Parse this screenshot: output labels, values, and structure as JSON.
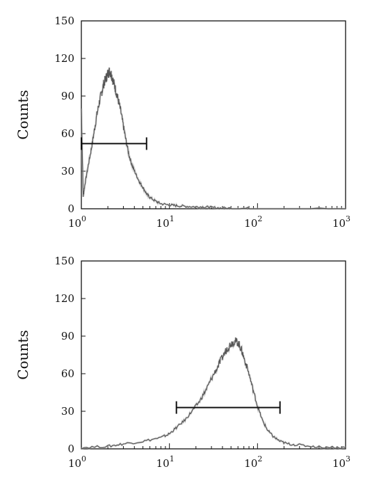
{
  "chart_data": [
    {
      "type": "area",
      "ylabel": "Counts",
      "xscale": "log",
      "xlim": [
        1,
        1000
      ],
      "ylim": [
        0,
        150
      ],
      "y_ticks": [
        "150",
        "120",
        "90",
        "60",
        "30",
        "0"
      ],
      "x_ticks": [
        {
          "base": "10",
          "exp": "0"
        },
        {
          "base": "10",
          "exp": "1"
        },
        {
          "base": "10",
          "exp": "2"
        },
        {
          "base": "10",
          "exp": "3"
        }
      ],
      "histogram": {
        "x": [
          1.0,
          1.05,
          1.1,
          1.2,
          1.3,
          1.4,
          1.5,
          1.6,
          1.7,
          1.8,
          1.9,
          2.0,
          2.1,
          2.2,
          2.3,
          2.45,
          2.6,
          2.8,
          3.0,
          3.2,
          3.5,
          3.8,
          4.2,
          4.6,
          5.0,
          5.5,
          6.0,
          7.0,
          8.0,
          10,
          12,
          15,
          20,
          25,
          30,
          40,
          60,
          100,
          1000
        ],
        "y": [
          80,
          10,
          20,
          35,
          48,
          62,
          75,
          85,
          93,
          100,
          104,
          108,
          110,
          107,
          102,
          95,
          88,
          78,
          66,
          55,
          42,
          34,
          27,
          21,
          17,
          12,
          9,
          6,
          4,
          3,
          2.5,
          2,
          1.5,
          1.5,
          1,
          0.5,
          0.3,
          0.2,
          0
        ]
      },
      "gate": {
        "x_start": 1.0,
        "x_end": 5.5,
        "y": 52
      }
    },
    {
      "type": "area",
      "ylabel": "Counts",
      "xscale": "log",
      "xlim": [
        1,
        1000
      ],
      "ylim": [
        0,
        150
      ],
      "y_ticks": [
        "150",
        "120",
        "90",
        "60",
        "30",
        "0"
      ],
      "x_ticks": [
        {
          "base": "10",
          "exp": "0"
        },
        {
          "base": "10",
          "exp": "1"
        },
        {
          "base": "10",
          "exp": "2"
        },
        {
          "base": "10",
          "exp": "3"
        }
      ],
      "histogram": {
        "x": [
          1,
          2,
          3,
          5,
          8,
          10,
          12,
          15,
          18,
          22,
          26,
          30,
          35,
          40,
          45,
          50,
          55,
          60,
          65,
          70,
          80,
          90,
          100,
          115,
          130,
          150,
          180,
          220,
          300,
          500,
          1000
        ],
        "y": [
          1,
          2,
          4,
          6,
          9,
          12,
          17,
          23,
          30,
          38,
          47,
          56,
          65,
          73,
          80,
          84,
          86,
          85,
          80,
          73,
          60,
          46,
          34,
          22,
          15,
          10,
          6,
          4,
          3,
          1.5,
          1
        ]
      },
      "gate": {
        "x_start": 12,
        "x_end": 180,
        "y": 33
      }
    }
  ]
}
